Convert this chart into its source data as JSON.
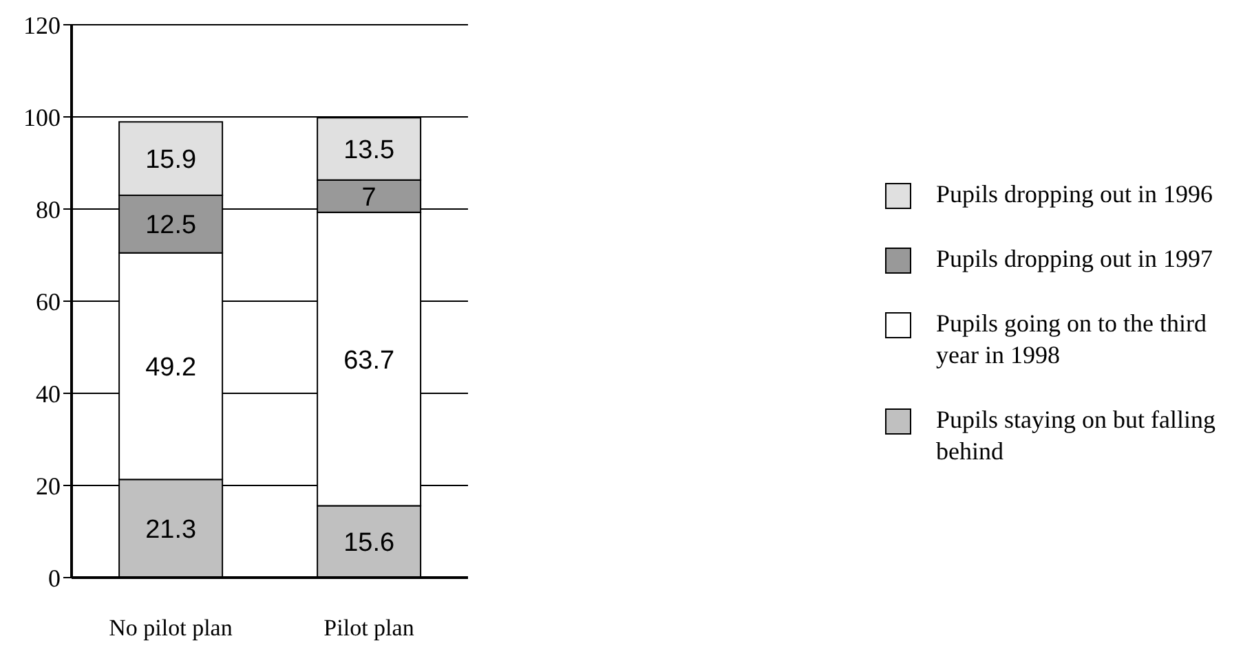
{
  "chart_data": {
    "type": "bar",
    "stacked": true,
    "categories": [
      "No pilot plan",
      "Pilot plan"
    ],
    "series": [
      {
        "name": "Pupils staying on but falling behind",
        "color": "#c0c0c0",
        "values": [
          21.3,
          15.6
        ]
      },
      {
        "name": "Pupils going on to the third year in 1998",
        "color": "#ffffff",
        "values": [
          49.2,
          63.7
        ]
      },
      {
        "name": "Pupils dropping out in 1997",
        "color": "#999999",
        "values": [
          12.5,
          7
        ]
      },
      {
        "name": "Pupils dropping out in 1996",
        "color": "#e0e0e0",
        "values": [
          15.9,
          13.5
        ]
      }
    ],
    "ylim": [
      0,
      120
    ],
    "yticks": [
      0,
      20,
      40,
      60,
      80,
      100,
      120
    ],
    "grid": "y",
    "legend": "right",
    "data_labels": true
  }
}
